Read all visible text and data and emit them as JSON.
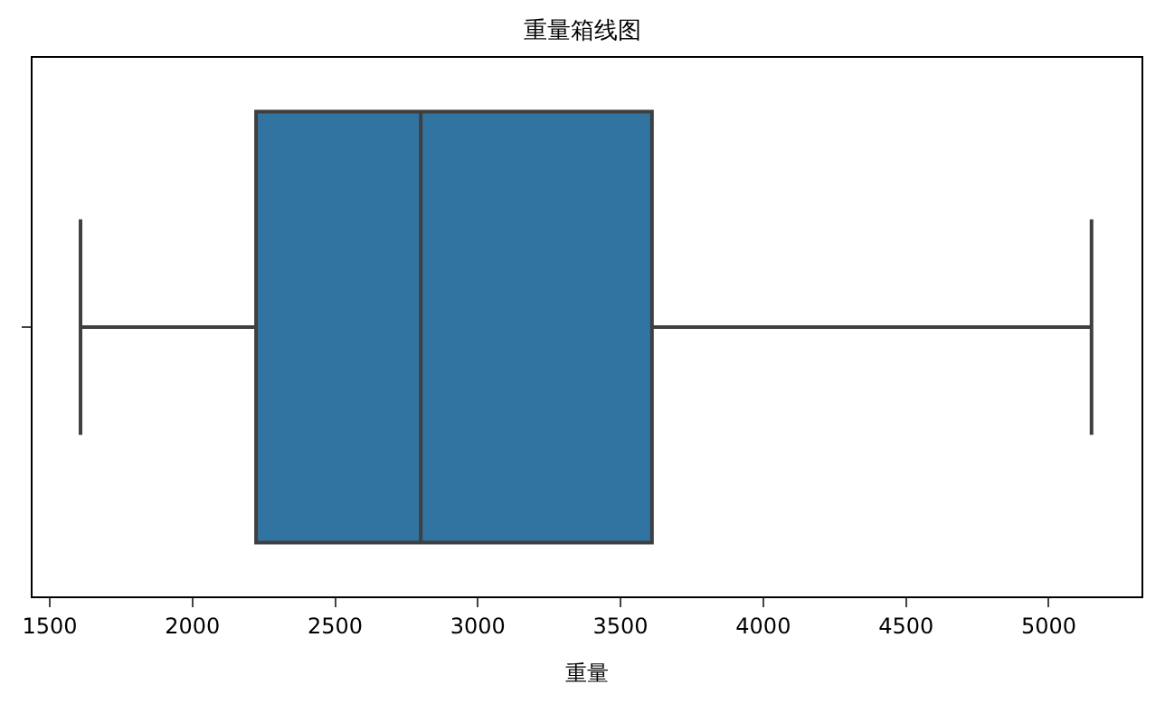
{
  "chart_data": {
    "type": "box",
    "title": "重量箱线图",
    "xlabel": "重量",
    "orientation": "horizontal",
    "categories": [
      null
    ],
    "series": [
      {
        "color": "#3274a1",
        "boxes": [
          {
            "low": 1608,
            "q1": 2223,
            "median": 2800,
            "q3": 3610,
            "high": 5150
          }
        ]
      }
    ],
    "xlim": [
      1440,
      5325
    ],
    "xticks": [
      1500,
      2000,
      2500,
      3000,
      3500,
      4000,
      4500,
      5000
    ]
  }
}
